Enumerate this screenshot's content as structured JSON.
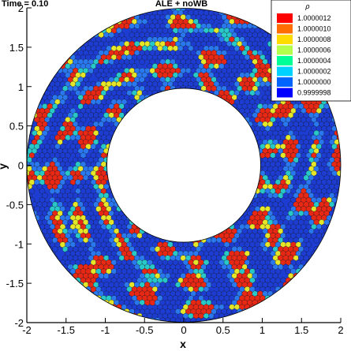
{
  "chart_data": {
    "type": "heatmap",
    "title": "ALE + noWB",
    "time_label": "Time = 0.10",
    "xlabel": "x",
    "ylabel": "y",
    "xlim": [
      -2,
      2
    ],
    "ylim": [
      -2,
      2
    ],
    "xticks": [
      "-2",
      "-1.5",
      "-1",
      "-0.5",
      "0",
      "0.5",
      "1",
      "1.5",
      "2"
    ],
    "yticks": [
      "-2",
      "-1.5",
      "-1",
      "-0.5",
      "0",
      "0.5",
      "1",
      "1.5",
      "2"
    ],
    "domain": {
      "shape": "annulus",
      "inner_radius": 0.98,
      "outer_radius": 2.0
    },
    "field": {
      "name": "rho",
      "symbol": "ρ",
      "min": 0.9999998,
      "max": 1.0000012
    },
    "colorbar": {
      "title": "ρ",
      "levels": [
        "1.0000012",
        "1.0000010",
        "1.0000008",
        "1.0000006",
        "1.0000004",
        "1.0000002",
        "1.0000000",
        "0.9999998"
      ],
      "colors": [
        "#ff0000",
        "#ff6e00",
        "#ffdc00",
        "#b4ff4b",
        "#00ff96",
        "#00d2ff",
        "#0064ff",
        "#0000ff"
      ],
      "placement": "top-right"
    },
    "colors": {
      "low": "#1c3cd2",
      "mid_low": "#2a78f0",
      "mid": "#28c8c8",
      "mid_high": "#e6e628",
      "high": "#e62814",
      "edge": "#1a1a1a"
    }
  }
}
